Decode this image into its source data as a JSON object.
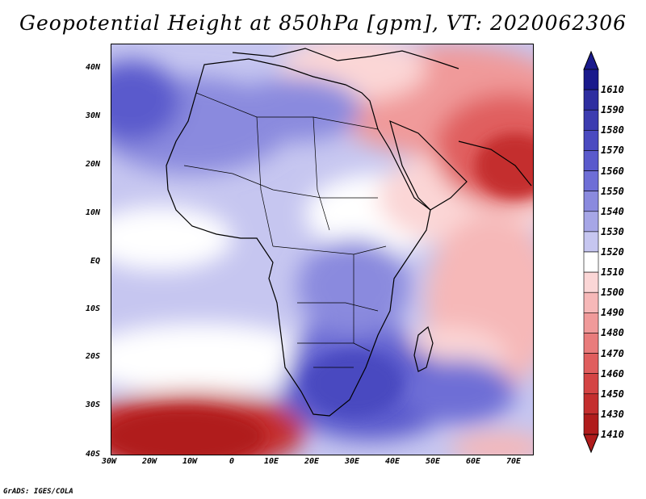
{
  "title": "Geopotential Height at 850hPa [gpm], VT: 2020062306",
  "credit": "GrADS: IGES/COLA",
  "latitudes": [
    "40N",
    "30N",
    "20N",
    "10N",
    "EQ",
    "10S",
    "20S",
    "30S",
    "40S"
  ],
  "longitudes": [
    "30W",
    "20W",
    "10W",
    "0",
    "10E",
    "20E",
    "30E",
    "40E",
    "50E",
    "60E",
    "70E"
  ],
  "colorbar": {
    "levels": [
      "1610",
      "1590",
      "1580",
      "1570",
      "1560",
      "1550",
      "1540",
      "1530",
      "1520",
      "1510",
      "1500",
      "1490",
      "1480",
      "1470",
      "1460",
      "1450",
      "1430",
      "1410"
    ],
    "colors": [
      "#1a1a8c",
      "#2e2ea0",
      "#3c3cb0",
      "#4a4ac0",
      "#5a5acc",
      "#6e6ed6",
      "#8a8ade",
      "#a6a6e6",
      "#c6c6f0",
      "#ffffff",
      "#fbd6d6",
      "#f6b8b8",
      "#f09a9a",
      "#e97c7c",
      "#e05e5e",
      "#d44444",
      "#c42e2e",
      "#b01c1c"
    ]
  },
  "map": {
    "background_field": "850hPa geopotential height shading over Africa and Middle East"
  }
}
